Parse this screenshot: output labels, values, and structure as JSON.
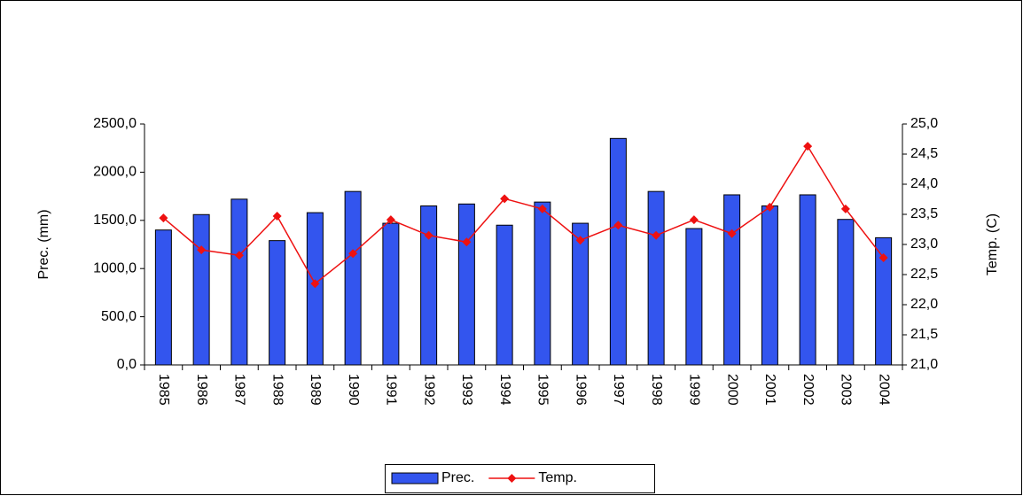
{
  "chart_data": {
    "type": "bar_line",
    "categories": [
      "1985",
      "1986",
      "1987",
      "1988",
      "1989",
      "1990",
      "1991",
      "1992",
      "1993",
      "1994",
      "1995",
      "1996",
      "1997",
      "1998",
      "1999",
      "2000",
      "2001",
      "2002",
      "2003",
      "2004"
    ],
    "series": [
      {
        "name": "Prec.",
        "type": "bar",
        "color": "#3355ee",
        "axis": "y",
        "values": [
          1400,
          1560,
          1720,
          1290,
          1580,
          1800,
          1470,
          1650,
          1670,
          1450,
          1690,
          1470,
          2350,
          1800,
          1415,
          1765,
          1650,
          1765,
          1510,
          1320
        ]
      },
      {
        "name": "Temp.",
        "type": "line",
        "color": "#ee1111",
        "axis": "y2",
        "values": [
          23.44,
          22.91,
          22.82,
          23.47,
          22.35,
          22.85,
          23.41,
          23.15,
          23.04,
          23.76,
          23.59,
          23.07,
          23.32,
          23.15,
          23.41,
          23.18,
          23.62,
          24.63,
          23.59,
          22.78
        ]
      }
    ],
    "ylabel": "Prec. (mm)",
    "y2label": "Temp. (C)",
    "ylim": [
      0,
      2500
    ],
    "yticks": [
      {
        "value": 0,
        "label": "0,0"
      },
      {
        "value": 500,
        "label": "500,0"
      },
      {
        "value": 1000,
        "label": "1000,0"
      },
      {
        "value": 1500,
        "label": "1500,0"
      },
      {
        "value": 2000,
        "label": "2000,0"
      },
      {
        "value": 2500,
        "label": "2500,0"
      }
    ],
    "y2lim": [
      21,
      25
    ],
    "y2ticks": [
      {
        "value": 21,
        "label": "21,0"
      },
      {
        "value": 21.5,
        "label": "21,5"
      },
      {
        "value": 22,
        "label": "22,0"
      },
      {
        "value": 22.5,
        "label": "22,5"
      },
      {
        "value": 23,
        "label": "23,0"
      },
      {
        "value": 23.5,
        "label": "23,5"
      },
      {
        "value": 24,
        "label": "24,0"
      },
      {
        "value": 24.5,
        "label": "24,5"
      },
      {
        "value": 25,
        "label": "25,0"
      }
    ],
    "legend": "bottom"
  }
}
